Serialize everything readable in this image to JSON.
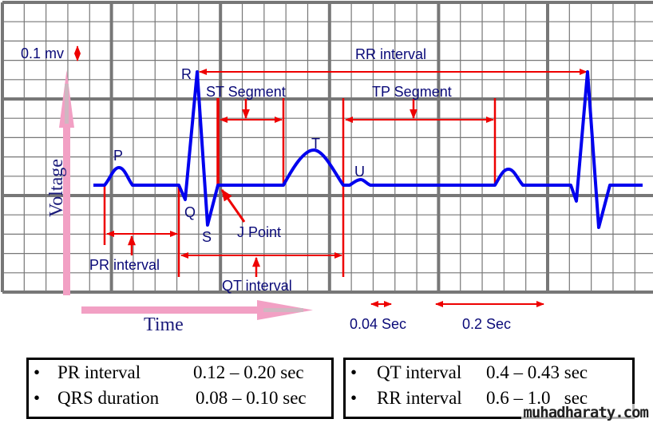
{
  "diagram": {
    "scale_label": "0.1 mv",
    "axis_labels": {
      "voltage": "Voltage",
      "time": "Time"
    },
    "waves": {
      "p": "P",
      "q": "Q",
      "r": "R",
      "s": "S",
      "t": "T",
      "u": "U"
    },
    "annotations": {
      "rr_interval": "RR interval",
      "st_segment": "ST Segment",
      "tp_segment": "TP Segment",
      "j_point": "J Point",
      "pr_interval": "PR interval",
      "qt_interval": "QT interval"
    },
    "time_scales": [
      {
        "label": "0.04 Sec"
      },
      {
        "label": "0.2 Sec"
      }
    ],
    "colors": {
      "trace": "#0000ee",
      "annotation": "#ee0000",
      "axis_arrow": "#f2a0c4",
      "grid": "#777777",
      "text": "#0a0a78"
    }
  },
  "summary": {
    "left_box": [
      {
        "bullet": "•",
        "name": "PR interval",
        "value": "0.12 – 0.20 sec"
      },
      {
        "bullet": "•",
        "name": "QRS duration",
        "value": "0.08 – 0.10 sec"
      }
    ],
    "right_box": [
      {
        "bullet": "•",
        "name": "QT interval",
        "value": "0.4 – 0.43 sec"
      },
      {
        "bullet": "•",
        "name": "RR interval",
        "value": "0.6 – 1.0   sec"
      }
    ]
  },
  "watermark": "muhadharaty.com"
}
